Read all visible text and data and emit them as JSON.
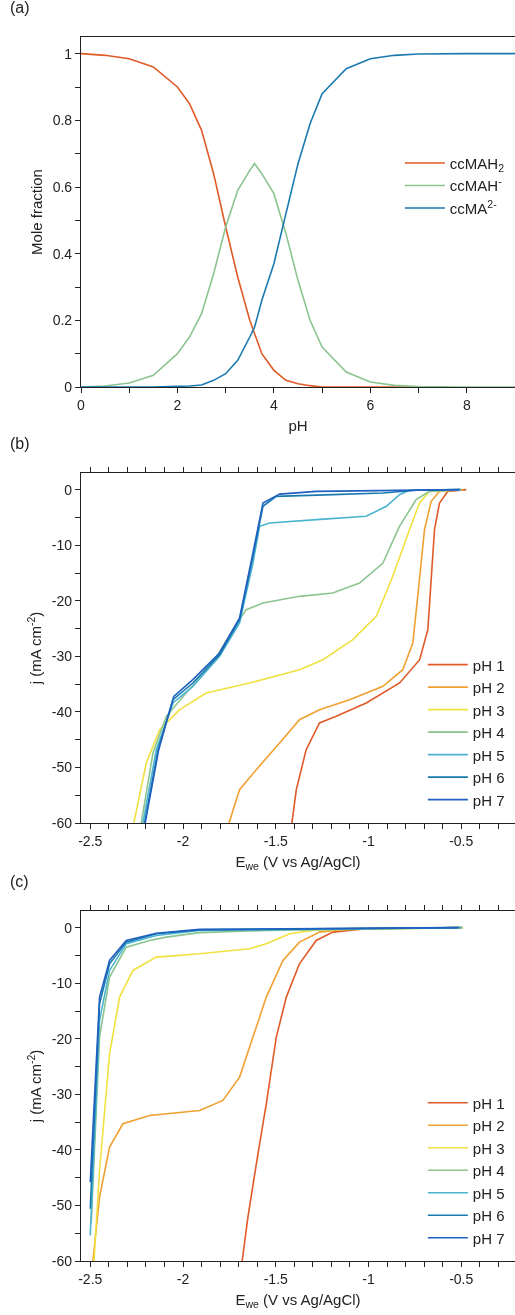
{
  "chart_data": [
    {
      "type": "line",
      "title": "(a)",
      "xlabel": "pH",
      "ylabel": "Mole fraction",
      "legend": "right",
      "marker": "none",
      "line_style": "solid",
      "xlim": [
        0,
        9
      ],
      "ylim": [
        0,
        1.05
      ],
      "xticks": [
        0,
        {
          "value": 1,
          "label": null
        },
        2,
        {
          "value": 3,
          "label": null
        },
        4,
        {
          "value": 5,
          "label": null
        },
        6,
        {
          "value": 7,
          "label": null
        },
        8
      ],
      "yticks": [
        0,
        {
          "value": 0.1,
          "label": null
        },
        0.2,
        {
          "value": 0.3,
          "label": null
        },
        0.4,
        {
          "value": 0.5,
          "label": null
        },
        0.6,
        {
          "value": 0.7,
          "label": null
        },
        0.8,
        {
          "value": 0.9,
          "label": null
        },
        1
      ],
      "series": [
        {
          "name": "ccMAH$_{2}$",
          "color": "#e05a28",
          "x": [
            0,
            0.5,
            1,
            1.5,
            2,
            2.25,
            2.5,
            2.75,
            3,
            3.25,
            3.5,
            3.6,
            3.75,
            4,
            4.25,
            4.5,
            4.75,
            5,
            5.5,
            6,
            6.5,
            7
          ],
          "values": [
            1,
            0.995,
            0.985,
            0.96,
            0.9,
            0.85,
            0.77,
            0.64,
            0.48,
            0.33,
            0.2,
            0.16,
            0.1,
            0.05,
            0.02,
            0.01,
            0.004,
            0,
            0,
            0,
            0,
            0
          ]
        },
        {
          "name": "ccMAH$^{-}$",
          "color": "#8cc490",
          "x": [
            0,
            0.5,
            1,
            1.5,
            2,
            2.25,
            2.5,
            2.75,
            3,
            3.25,
            3.5,
            3.6,
            3.75,
            4,
            4.25,
            4.5,
            4.75,
            5,
            5.5,
            6,
            6.5,
            7,
            8,
            9
          ],
          "values": [
            0,
            0.003,
            0.012,
            0.035,
            0.1,
            0.15,
            0.22,
            0.34,
            0.48,
            0.59,
            0.65,
            0.67,
            0.64,
            0.58,
            0.46,
            0.32,
            0.2,
            0.12,
            0.045,
            0.015,
            0.005,
            0.001,
            0,
            0
          ]
        },
        {
          "name": "ccMA$^{2-}$",
          "color": "#1a7ab0",
          "x": [
            0,
            0.5,
            1,
            1.5,
            2,
            2.25,
            2.5,
            2.75,
            3,
            3.25,
            3.5,
            3.6,
            3.75,
            4,
            4.25,
            4.5,
            4.75,
            5,
            5.5,
            6,
            6.5,
            7,
            8,
            9
          ],
          "values": [
            0,
            0,
            0,
            0,
            0.002,
            0.003,
            0.006,
            0.02,
            0.04,
            0.08,
            0.15,
            0.18,
            0.26,
            0.37,
            0.52,
            0.67,
            0.79,
            0.88,
            0.955,
            0.985,
            0.995,
            0.999,
            1,
            1
          ]
        }
      ]
    },
    {
      "type": "line",
      "title": "(b)",
      "xlabel": "E$_{we}$ (V vs Ag/AgCl)",
      "ylabel": "j (mA cm$^{-2}$)",
      "legend": "bottom right",
      "marker": "none",
      "line_style": "solid",
      "xlim": [
        -2.55,
        -0.21
      ],
      "ylim": [
        -60,
        3
      ],
      "xticks": [
        -2.5,
        {
          "value": -2.4,
          "label": null
        },
        {
          "value": -2.3,
          "label": null
        },
        {
          "value": -2.2,
          "label": null
        },
        {
          "value": -2.1,
          "label": null
        },
        -2,
        {
          "value": -1.9,
          "label": null
        },
        {
          "value": -1.8,
          "label": null
        },
        {
          "value": -1.7,
          "label": null
        },
        {
          "value": -1.6,
          "label": null
        },
        -1.5,
        {
          "value": -1.4,
          "label": null
        },
        {
          "value": -1.3,
          "label": null
        },
        {
          "value": -1.2,
          "label": null
        },
        {
          "value": -1.1,
          "label": null
        },
        -1,
        {
          "value": -0.9,
          "label": null
        },
        {
          "value": -0.8,
          "label": null
        },
        {
          "value": -0.7,
          "label": null
        },
        {
          "value": -0.6,
          "label": null
        },
        -0.5,
        {
          "value": -0.4,
          "label": null
        },
        {
          "value": -0.3,
          "label": null
        }
      ],
      "yticks": [
        -60,
        {
          "value": -55,
          "label": null
        },
        -50,
        {
          "value": -45,
          "label": null
        },
        -40,
        {
          "value": -35,
          "label": null
        },
        -30,
        {
          "value": -25,
          "label": null
        },
        -20,
        {
          "value": -15,
          "label": null
        },
        -10,
        {
          "value": -5,
          "label": null
        },
        0
      ],
      "series": [
        {
          "name": "pH 1",
          "color": "#e05a28",
          "x": [
            -1.413,
            -1.389,
            -1.336,
            -1.264,
            -1.174,
            -1.012,
            -0.832,
            -0.724,
            -0.68,
            -0.662,
            -0.644,
            -0.617,
            -0.572,
            -0.473
          ],
          "values": [
            -60,
            -54,
            -46.8,
            -42,
            -40.8,
            -38.4,
            -34.8,
            -30.6,
            -25.2,
            -16.2,
            -7.2,
            -2.4,
            -0.3,
            0
          ]
        },
        {
          "name": "pH 2",
          "color": "#f0a030",
          "x": [
            -1.752,
            -1.695,
            -1.605,
            -1.479,
            -1.372,
            -1.264,
            -1.102,
            -0.922,
            -0.815,
            -0.761,
            -0.725,
            -0.698,
            -0.662,
            -0.617,
            -0.491
          ],
          "values": [
            -60,
            -54,
            -50.4,
            -45.6,
            -41.4,
            -39.6,
            -37.8,
            -35.4,
            -32.4,
            -27.6,
            -16.2,
            -7.2,
            -2.1,
            -0.3,
            0
          ]
        },
        {
          "name": "pH 3",
          "color": "#f0e040",
          "x": [
            -2.265,
            -2.198,
            -2.126,
            -2.018,
            -1.875,
            -1.641,
            -1.372,
            -1.246,
            -1.084,
            -0.958,
            -0.869,
            -0.779,
            -0.725,
            -0.671,
            -0.5
          ],
          "values": [
            -60,
            -49.2,
            -43.2,
            -39.6,
            -36.6,
            -34.8,
            -32.4,
            -30.6,
            -27,
            -22.8,
            -15.6,
            -7.2,
            -2.4,
            -0.3,
            0
          ]
        },
        {
          "name": "pH 4",
          "color": "#8cc490",
          "x": [
            -2.225,
            -2.162,
            -2.09,
            -1.983,
            -1.839,
            -1.731,
            -1.659,
            -1.569,
            -1.372,
            -1.192,
            -1.048,
            -0.922,
            -0.833,
            -0.743,
            -0.671,
            -0.5
          ],
          "values": [
            -60,
            -47.4,
            -40.8,
            -36.6,
            -31.2,
            -25.2,
            -21.6,
            -20.4,
            -19.2,
            -18.6,
            -16.8,
            -13.2,
            -6.6,
            -1.8,
            -0.3,
            0
          ]
        },
        {
          "name": "pH 5",
          "color": "#4ab4d0",
          "x": [
            -2.216,
            -2.144,
            -2.054,
            -1.947,
            -1.803,
            -1.695,
            -1.623,
            -1.587,
            -1.533,
            -1.281,
            -1.012,
            -0.904,
            -0.833,
            -0.779,
            -0.5
          ],
          "values": [
            -60,
            -46.8,
            -38.4,
            -35.4,
            -30,
            -24,
            -13.2,
            -6.6,
            -6,
            -5.4,
            -4.8,
            -3,
            -0.9,
            -0.1,
            0
          ]
        },
        {
          "name": "pH 6",
          "color": "#1a7ab0",
          "x": [
            -2.207,
            -2.135,
            -2.054,
            -1.947,
            -1.803,
            -1.695,
            -1.623,
            -1.569,
            -1.497,
            -1.192,
            -0.922,
            -0.743,
            -0.509
          ],
          "values": [
            -60,
            -46.8,
            -37.8,
            -34.8,
            -29.7,
            -23.4,
            -12,
            -3,
            -1.2,
            -0.9,
            -0.6,
            -0.1,
            0
          ]
        },
        {
          "name": "pH 7",
          "color": "#2060c0",
          "x": [
            -2.204,
            -2.131,
            -2.05,
            -1.947,
            -1.803,
            -1.695,
            -1.623,
            -1.569,
            -1.479,
            -1.281,
            -0.509
          ],
          "values": [
            -60,
            -46.8,
            -37.2,
            -34.2,
            -29.4,
            -23.1,
            -11.4,
            -2.4,
            -0.8,
            -0.3,
            0
          ]
        }
      ]
    },
    {
      "type": "line",
      "title": "(c)",
      "xlabel": "E$_{we}$ (V vs Ag/AgCl)",
      "ylabel": "j (mA cm$^{-2}$)",
      "legend": "bottom right",
      "marker": "none",
      "line_style": "solid",
      "xlim": [
        -2.55,
        -0.21
      ],
      "ylim": [
        -60,
        3
      ],
      "xticks": [
        -2.5,
        {
          "value": -2.4,
          "label": null
        },
        {
          "value": -2.3,
          "label": null
        },
        {
          "value": -2.2,
          "label": null
        },
        {
          "value": -2.1,
          "label": null
        },
        -2,
        {
          "value": -1.9,
          "label": null
        },
        {
          "value": -1.8,
          "label": null
        },
        {
          "value": -1.7,
          "label": null
        },
        {
          "value": -1.6,
          "label": null
        },
        -1.5,
        {
          "value": -1.4,
          "label": null
        },
        {
          "value": -1.3,
          "label": null
        },
        {
          "value": -1.2,
          "label": null
        },
        {
          "value": -1.1,
          "label": null
        },
        -1,
        {
          "value": -0.9,
          "label": null
        },
        {
          "value": -0.8,
          "label": null
        },
        {
          "value": -0.7,
          "label": null
        },
        {
          "value": -0.6,
          "label": null
        },
        -0.5,
        {
          "value": -0.4,
          "label": null
        },
        {
          "value": -0.3,
          "label": null
        }
      ],
      "yticks": [
        -60,
        {
          "value": -55,
          "label": null
        },
        -50,
        {
          "value": -45,
          "label": null
        },
        -40,
        {
          "value": -35,
          "label": null
        },
        -30,
        {
          "value": -25,
          "label": null
        },
        -20,
        {
          "value": -15,
          "label": null
        },
        -10,
        {
          "value": -5,
          "label": null
        },
        0
      ],
      "series": [
        {
          "name": "pH 1",
          "color": "#e05a28",
          "x": [
            -1.681,
            -1.65,
            -1.596,
            -1.551,
            -1.497,
            -1.443,
            -1.372,
            -1.282,
            -1.192,
            -1.012,
            -0.5
          ],
          "values": [
            -60,
            -52.1,
            -40.7,
            -31.7,
            -19.7,
            -12.5,
            -6.5,
            -2.3,
            -0.8,
            -0.2,
            0
          ]
        },
        {
          "name": "pH 2",
          "color": "#f0a030",
          "x": [
            -2.486,
            -2.45,
            -2.396,
            -2.324,
            -2.18,
            -1.911,
            -1.785,
            -1.695,
            -1.623,
            -1.551,
            -1.461,
            -1.372,
            -1.264,
            -1.102,
            -0.491
          ],
          "values": [
            -60,
            -48.5,
            -39.5,
            -35.3,
            -33.8,
            -32.9,
            -31.1,
            -26.9,
            -19.7,
            -12.5,
            -5.9,
            -2.6,
            -0.8,
            -0.2,
            0
          ]
        },
        {
          "name": "pH 3",
          "color": "#f0e040",
          "x": [
            -2.48,
            -2.45,
            -2.396,
            -2.342,
            -2.27,
            -2.144,
            -1.911,
            -1.641,
            -1.551,
            -1.425,
            -1.282,
            -0.5
          ],
          "values": [
            -60,
            -43.7,
            -22.7,
            -12.5,
            -7.7,
            -5.3,
            -4.7,
            -3.8,
            -2.9,
            -1.1,
            -0.4,
            0
          ]
        },
        {
          "name": "pH 4",
          "color": "#8cc490",
          "x": [
            -2.495,
            -2.45,
            -2.396,
            -2.306,
            -2.18,
            -2.09,
            -1.911,
            -1.551,
            -0.491
          ],
          "values": [
            -53.3,
            -19.7,
            -8.9,
            -3.5,
            -2.3,
            -1.7,
            -0.9,
            -0.5,
            0
          ]
        },
        {
          "name": "pH 5",
          "color": "#4ab4d0",
          "x": [
            -2.5,
            -2.45,
            -2.396,
            -2.306,
            -2.144,
            -1.911,
            -0.5
          ],
          "values": [
            -55.4,
            -16.7,
            -7.7,
            -2.9,
            -1.4,
            -0.5,
            0
          ]
        },
        {
          "name": "pH 6",
          "color": "#1a7ab0",
          "x": [
            -2.5,
            -2.45,
            -2.396,
            -2.306,
            -2.144,
            -1.911,
            -0.509
          ],
          "values": [
            -50.6,
            -13.7,
            -6.5,
            -2.6,
            -1.1,
            -0.4,
            0
          ]
        },
        {
          "name": "pH 7",
          "color": "#2060c0",
          "x": [
            -2.5,
            -2.45,
            -2.396,
            -2.306,
            -2.144,
            -1.911,
            -0.518
          ],
          "values": [
            -45.8,
            -12.5,
            -5.9,
            -2.3,
            -1,
            -0.3,
            0
          ]
        }
      ]
    }
  ]
}
